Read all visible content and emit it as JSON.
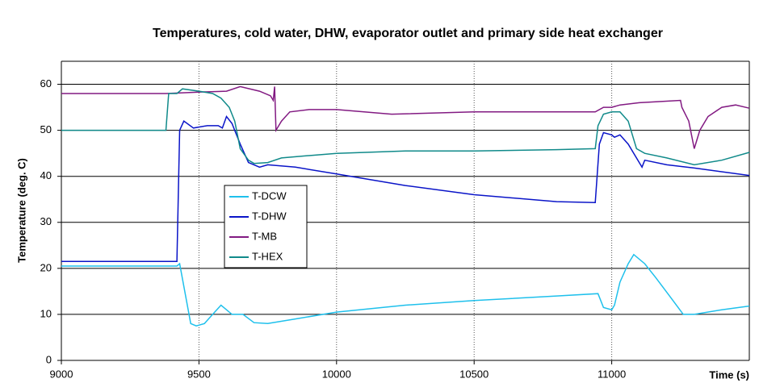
{
  "chart_data": {
    "type": "line",
    "title": "Temperatures, cold water, DHW, evaporator outlet and primary side heat exchanger",
    "x_label": "Time (s)",
    "y_label": "Temperature (deg. C)",
    "xlim": [
      9000,
      11500
    ],
    "xticks": [
      9000,
      9500,
      10000,
      10500,
      11000
    ],
    "ylim": [
      0,
      65
    ],
    "yticks": [
      0,
      10,
      20,
      30,
      40,
      50,
      60
    ],
    "grid": true,
    "legend": "center-left",
    "series": [
      {
        "name": "T-DCW",
        "color": "#1ec0ec",
        "x": [
          9000,
          9420,
          9430,
          9470,
          9490,
          9520,
          9550,
          9580,
          9620,
          9660,
          9700,
          9750,
          9850,
          10000,
          10250,
          10500,
          10800,
          10950,
          10970,
          11000,
          11010,
          11030,
          11060,
          11080,
          11120,
          11160,
          11210,
          11260,
          11300,
          11400,
          11500
        ],
        "values": [
          20.5,
          20.5,
          21,
          8,
          7.5,
          8,
          10,
          12,
          10,
          10,
          8.2,
          8,
          9,
          10.5,
          12,
          13,
          14,
          14.5,
          11.5,
          11,
          12,
          17,
          21,
          23,
          21,
          18,
          14,
          10,
          10,
          11,
          11.8
        ]
      },
      {
        "name": "T-DHW",
        "color": "#0a14c8",
        "x": [
          9000,
          9420,
          9430,
          9445,
          9480,
          9530,
          9570,
          9585,
          9600,
          9620,
          9650,
          9680,
          9720,
          9750,
          9850,
          10000,
          10250,
          10500,
          10800,
          10940,
          10955,
          10970,
          11000,
          11010,
          11030,
          11060,
          11100,
          11110,
          11120,
          11200,
          11300,
          11500
        ],
        "values": [
          21.5,
          21.5,
          50,
          52,
          50.5,
          51,
          51,
          50.5,
          53,
          51.5,
          47,
          43,
          42,
          42.5,
          42,
          40.5,
          38,
          36,
          34.5,
          34.3,
          47,
          49.5,
          49,
          48.5,
          49,
          47,
          43,
          42,
          43.5,
          42.5,
          41.8,
          40.2
        ]
      },
      {
        "name": "T-MB",
        "color": "#821a82",
        "x": [
          9000,
          9380,
          9500,
          9600,
          9650,
          9720,
          9760,
          9770,
          9775,
          9780,
          9800,
          9830,
          9900,
          10000,
          10200,
          10500,
          10800,
          10940,
          10970,
          11000,
          11030,
          11100,
          11250,
          11255,
          11280,
          11300,
          11320,
          11350,
          11400,
          11450,
          11500
        ],
        "values": [
          58,
          58,
          58.3,
          58.5,
          59.5,
          58.5,
          57.5,
          56.5,
          59.5,
          50,
          52,
          54,
          54.5,
          54.5,
          53.5,
          54,
          54,
          54,
          55,
          55,
          55.5,
          56,
          56.5,
          55,
          52,
          46,
          50,
          53,
          55,
          55.5,
          54.8
        ]
      },
      {
        "name": "T-HEX",
        "color": "#108a8a",
        "x": [
          9000,
          9380,
          9390,
          9420,
          9440,
          9500,
          9550,
          9580,
          9610,
          9630,
          9650,
          9680,
          9700,
          9750,
          9800,
          9900,
          10000,
          10250,
          10500,
          10800,
          10940,
          10950,
          10970,
          11000,
          11030,
          11060,
          11090,
          11120,
          11200,
          11300,
          11400,
          11500
        ],
        "values": [
          50,
          50,
          58,
          58,
          59,
          58.5,
          58,
          57,
          55,
          52,
          46,
          43.5,
          42.8,
          43,
          44,
          44.5,
          45,
          45.5,
          45.5,
          45.8,
          46,
          51,
          53.5,
          54,
          54,
          52,
          46,
          45,
          44,
          42.5,
          43.5,
          45.2
        ]
      }
    ]
  }
}
